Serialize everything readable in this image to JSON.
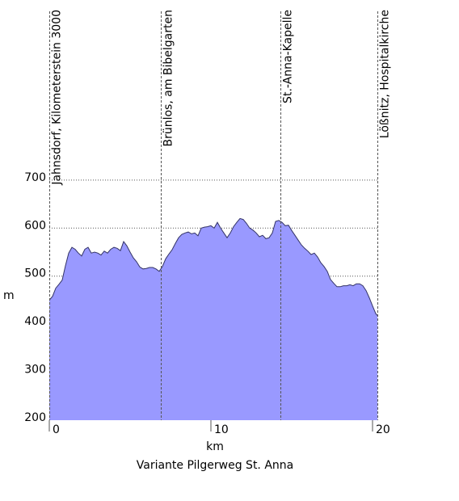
{
  "chart_data": {
    "type": "area",
    "title": "Variante Pilgerweg St. Anna",
    "xlabel": "km",
    "ylabel": "m",
    "xlim": [
      0,
      20.3
    ],
    "ylim": [
      200,
      720
    ],
    "x_ticks": [
      0,
      10,
      20
    ],
    "x_tick_labels": [
      "0",
      "10",
      "20"
    ],
    "y_ticks": [
      200,
      300,
      400,
      500,
      600,
      700
    ],
    "y_tick_labels": [
      "200",
      "300",
      "400",
      "500",
      "600",
      "700"
    ],
    "grid_y": true,
    "fill_color": "#9999ff",
    "line_color": "#333366",
    "waypoints": [
      {
        "x": 0.0,
        "label": "Jahnsdorf, Kilometerstein 3000"
      },
      {
        "x": 6.9,
        "label": "Brünlos, am Bibelgarten"
      },
      {
        "x": 14.3,
        "label": "St.-Anna-Kapelle"
      },
      {
        "x": 20.3,
        "label": "Lößnitz, Hospitalkirche"
      }
    ],
    "profile": {
      "x": [
        0,
        0.2,
        0.4,
        0.6,
        0.8,
        1.0,
        1.2,
        1.4,
        1.6,
        1.8,
        2.0,
        2.2,
        2.4,
        2.6,
        2.8,
        3.0,
        3.2,
        3.4,
        3.6,
        3.8,
        4.0,
        4.2,
        4.4,
        4.6,
        4.8,
        5.0,
        5.2,
        5.4,
        5.6,
        5.8,
        6.0,
        6.2,
        6.4,
        6.6,
        6.8,
        7.0,
        7.2,
        7.4,
        7.6,
        7.8,
        8.0,
        8.2,
        8.4,
        8.6,
        8.8,
        9.0,
        9.2,
        9.4,
        9.6,
        9.8,
        10.0,
        10.2,
        10.4,
        10.6,
        10.8,
        11.0,
        11.2,
        11.4,
        11.6,
        11.8,
        12.0,
        12.2,
        12.4,
        12.6,
        12.8,
        13.0,
        13.2,
        13.4,
        13.6,
        13.8,
        14.0,
        14.2,
        14.4,
        14.6,
        14.8,
        15.0,
        15.2,
        15.4,
        15.6,
        15.8,
        16.0,
        16.2,
        16.4,
        16.6,
        16.8,
        17.0,
        17.2,
        17.4,
        17.6,
        17.8,
        18.0,
        18.2,
        18.4,
        18.6,
        18.8,
        19.0,
        19.2,
        19.4,
        19.6,
        19.8,
        20.0,
        20.2,
        20.3
      ],
      "y": [
        450,
        458,
        475,
        483,
        492,
        522,
        548,
        560,
        556,
        548,
        542,
        556,
        560,
        548,
        550,
        548,
        544,
        552,
        548,
        556,
        560,
        558,
        553,
        572,
        563,
        550,
        538,
        530,
        519,
        515,
        516,
        518,
        518,
        515,
        510,
        520,
        536,
        546,
        555,
        568,
        580,
        587,
        590,
        592,
        588,
        590,
        584,
        600,
        602,
        603,
        605,
        600,
        612,
        600,
        590,
        580,
        590,
        603,
        612,
        620,
        618,
        610,
        600,
        596,
        590,
        582,
        585,
        578,
        580,
        590,
        614,
        616,
        612,
        605,
        606,
        595,
        585,
        575,
        565,
        558,
        552,
        545,
        548,
        540,
        528,
        520,
        510,
        493,
        485,
        478,
        478,
        480,
        480,
        482,
        480,
        484,
        484,
        480,
        470,
        455,
        438,
        422,
        418
      ]
    }
  }
}
